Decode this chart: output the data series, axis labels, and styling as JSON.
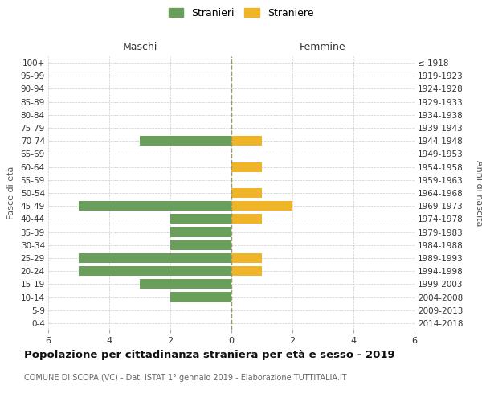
{
  "age_groups": [
    "0-4",
    "5-9",
    "10-14",
    "15-19",
    "20-24",
    "25-29",
    "30-34",
    "35-39",
    "40-44",
    "45-49",
    "50-54",
    "55-59",
    "60-64",
    "65-69",
    "70-74",
    "75-79",
    "80-84",
    "85-89",
    "90-94",
    "95-99",
    "100+"
  ],
  "birth_years": [
    "2014-2018",
    "2009-2013",
    "2004-2008",
    "1999-2003",
    "1994-1998",
    "1989-1993",
    "1984-1988",
    "1979-1983",
    "1974-1978",
    "1969-1973",
    "1964-1968",
    "1959-1963",
    "1954-1958",
    "1949-1953",
    "1944-1948",
    "1939-1943",
    "1934-1938",
    "1929-1933",
    "1924-1928",
    "1919-1923",
    "≤ 1918"
  ],
  "maschi": [
    0,
    0,
    2,
    3,
    5,
    5,
    2,
    2,
    2,
    5,
    0,
    0,
    0,
    0,
    3,
    0,
    0,
    0,
    0,
    0,
    0
  ],
  "femmine": [
    0,
    0,
    0,
    0,
    1,
    1,
    0,
    0,
    1,
    2,
    1,
    0,
    1,
    0,
    1,
    0,
    0,
    0,
    0,
    0,
    0
  ],
  "color_maschi": "#6a9e5b",
  "color_femmine": "#f0b429",
  "title": "Popolazione per cittadinanza straniera per età e sesso - 2019",
  "subtitle": "COMUNE DI SCOPA (VC) - Dati ISTAT 1° gennaio 2019 - Elaborazione TUTTITALIA.IT",
  "xlabel_left": "Maschi",
  "xlabel_right": "Femmine",
  "ylabel_left": "Fasce di età",
  "ylabel_right": "Anni di nascita",
  "legend_maschi": "Stranieri",
  "legend_femmine": "Straniere",
  "xlim": 6,
  "background_color": "#ffffff",
  "grid_color": "#cccccc",
  "bar_height": 0.75
}
